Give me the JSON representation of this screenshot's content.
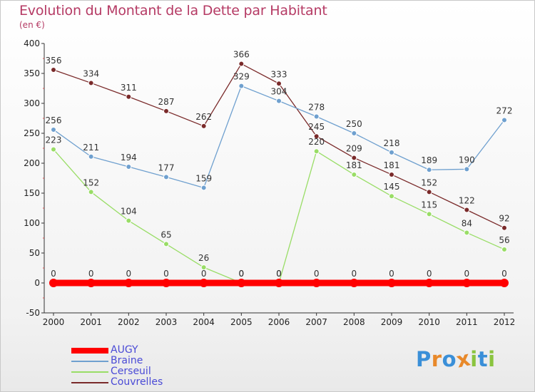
{
  "header": {
    "title": "Evolution du Montant de la Dette par Habitant",
    "unit": "(en €)"
  },
  "chart_data": {
    "type": "line",
    "title": "Evolution du Montant de la Dette par Habitant",
    "ylabel": "(en €)",
    "xlabel": "",
    "x": [
      2000,
      2001,
      2002,
      2003,
      2004,
      2005,
      2006,
      2007,
      2008,
      2009,
      2010,
      2011,
      2012
    ],
    "ylim": [
      -50,
      400
    ],
    "yticks": [
      -50,
      0,
      50,
      100,
      150,
      200,
      250,
      300,
      350,
      400
    ],
    "grid": false,
    "legend_position": "bottom-left",
    "series": [
      {
        "name": "AUGY",
        "color": "#ff0000",
        "values": [
          0,
          0,
          0,
          0,
          0,
          0,
          0,
          0,
          0,
          0,
          0,
          0,
          0
        ]
      },
      {
        "name": "Braine",
        "color": "#6fa0cf",
        "values": [
          256,
          211,
          194,
          177,
          159,
          329,
          304,
          278,
          250,
          218,
          189,
          190,
          272
        ]
      },
      {
        "name": "Cerseuil",
        "color": "#99dd66",
        "values": [
          223,
          152,
          104,
          65,
          26,
          0,
          0,
          220,
          181,
          145,
          115,
          84,
          56
        ]
      },
      {
        "name": "Couvrelles",
        "color": "#7a2a2a",
        "values": [
          356,
          334,
          311,
          287,
          262,
          366,
          333,
          245,
          209,
          181,
          152,
          122,
          92
        ]
      }
    ]
  },
  "logo": {
    "text": "Proxiti",
    "letters": [
      "P",
      "r",
      "o",
      "x",
      "i",
      "t",
      "i"
    ],
    "colors": [
      "#3a8fd8",
      "#e8892a",
      "#3a8fd8",
      "#e8892a",
      "#8ac43f",
      "#3a8fd8",
      "#8ac43f"
    ]
  }
}
